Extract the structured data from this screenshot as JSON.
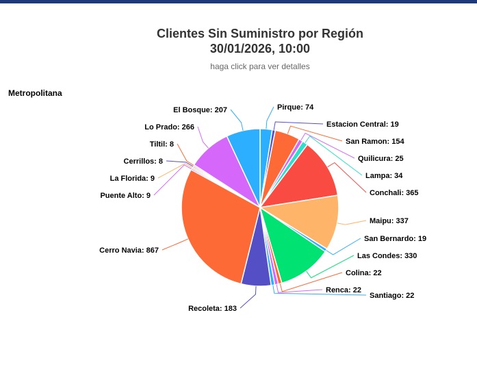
{
  "chart_data": {
    "type": "pie",
    "title_line1": "Clientes Sin Suministro por Región",
    "title_line2": "30/01/2026, 10:00",
    "subtitle": "haga click para ver detalles",
    "region": "Metropolitana",
    "slices": [
      {
        "name": "Pirque",
        "value": 74,
        "color": "#2caffe"
      },
      {
        "name": "Estacion Central",
        "value": 19,
        "color": "#544fc5"
      },
      {
        "name": "San Ramon",
        "value": 154,
        "color": "#fe6a35"
      },
      {
        "name": "Quilicura",
        "value": 25,
        "color": "#d568fb"
      },
      {
        "name": "Lampa",
        "value": 34,
        "color": "#2ee0ca"
      },
      {
        "name": "Conchali",
        "value": 365,
        "color": "#fa4b42"
      },
      {
        "name": "Maipu",
        "value": 337,
        "color": "#feb56a"
      },
      {
        "name": "San Bernardo",
        "value": 19,
        "color": "#2caffe"
      },
      {
        "name": "Las Condes",
        "value": 330,
        "color": "#00e272"
      },
      {
        "name": "Colina",
        "value": 22,
        "color": "#fe6a35"
      },
      {
        "name": "Renca",
        "value": 22,
        "color": "#d568fb"
      },
      {
        "name": "Santiago",
        "value": 22,
        "color": "#2caffe"
      },
      {
        "name": "Recoleta",
        "value": 183,
        "color": "#544fc5"
      },
      {
        "name": "Cerro Navia",
        "value": 867,
        "color": "#fe6a35"
      },
      {
        "name": "Puente Alto",
        "value": 9,
        "color": "#d568fb"
      },
      {
        "name": "La Florida",
        "value": 9,
        "color": "#feb56a"
      },
      {
        "name": "Cerrillos",
        "value": 8,
        "color": "#544fc5"
      },
      {
        "name": "Tiltil",
        "value": 8,
        "color": "#fe6a35"
      },
      {
        "name": "Lo Prado",
        "value": 266,
        "color": "#d568fb"
      },
      {
        "name": "El Bosque",
        "value": 207,
        "color": "#2caffe"
      }
    ]
  }
}
